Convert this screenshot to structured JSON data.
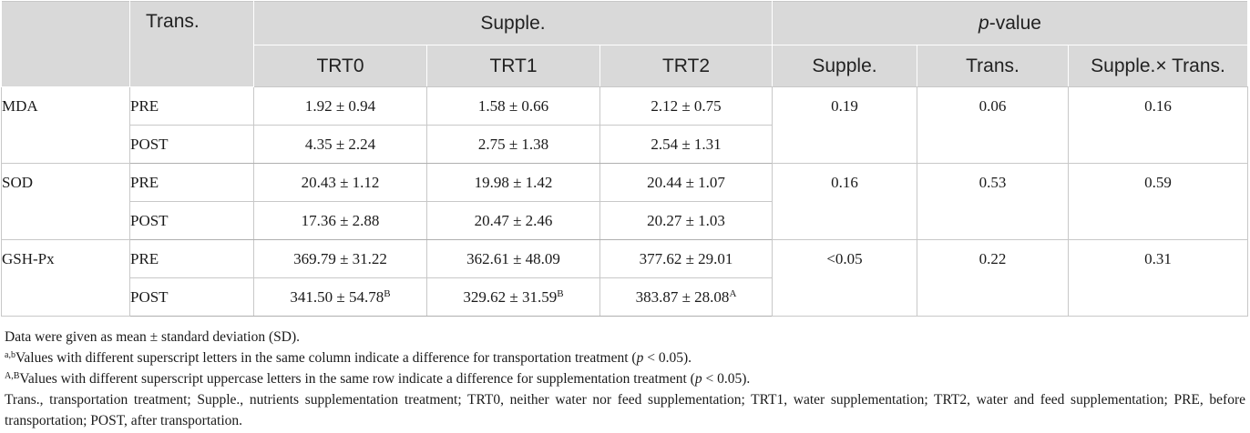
{
  "header": {
    "trans": "Trans.",
    "supple": "Supple.",
    "pvalue_prefix": "p",
    "pvalue_suffix": "-value",
    "trt0": "TRT0",
    "trt1": "TRT1",
    "trt2": "TRT2",
    "p_supple": "Supple.",
    "p_trans": "Trans.",
    "p_inter": "Supple.× Trans."
  },
  "rows": [
    {
      "variable": "MDA",
      "trans": "PRE",
      "trt0": "1.92 ± 0.94",
      "trt1": "1.58 ± 0.66",
      "trt2": "2.12 ± 0.75",
      "p_supple": "0.19",
      "p_trans": "0.06",
      "p_inter": "0.16"
    },
    {
      "trans": "POST",
      "trt0": "4.35 ± 2.24",
      "trt1": "2.75 ± 1.38",
      "trt2": "2.54 ± 1.31"
    },
    {
      "variable": "SOD",
      "trans": "PRE",
      "trt0": "20.43 ± 1.12",
      "trt1": "19.98 ± 1.42",
      "trt2": "20.44 ± 1.07",
      "p_supple": "0.16",
      "p_trans": "0.53",
      "p_inter": "0.59"
    },
    {
      "trans": "POST",
      "trt0": "17.36 ± 2.88",
      "trt1": "20.47 ± 2.46",
      "trt2": "20.27 ± 1.03"
    },
    {
      "variable": "GSH-Px",
      "trans": "PRE",
      "trt0": "369.79 ± 31.22",
      "trt1": "362.61 ± 48.09",
      "trt2": "377.62 ± 29.01",
      "p_supple": "<0.05",
      "p_trans": "0.22",
      "p_inter": "0.31"
    },
    {
      "trans": "POST",
      "trt0": "341.50 ± 54.78",
      "trt0_sup": "B",
      "trt1": "329.62 ± 31.59",
      "trt1_sup": "B",
      "trt2": "383.87 ± 28.08",
      "trt2_sup": "A"
    }
  ],
  "notes": {
    "n1": "Data were given as mean ± standard deviation (SD).",
    "n2_sup": "a,b",
    "n2_text": "Values with different superscript letters in the same column indicate a difference for transportation treatment (",
    "n2_p": "p",
    "n2_end": " < 0.05).",
    "n3_sup": "A,B",
    "n3_text": "Values with different superscript uppercase letters in the same row indicate a difference for supplementation treatment (",
    "n3_p": "p",
    "n3_end": " < 0.05).",
    "n4": "Trans., transportation treatment; Supple., nutrients supplementation treatment; TRT0, neither water nor feed supplementation; TRT1, water supplementation; TRT2, water and feed supplementation; PRE, before transportation; POST, after transportation."
  }
}
